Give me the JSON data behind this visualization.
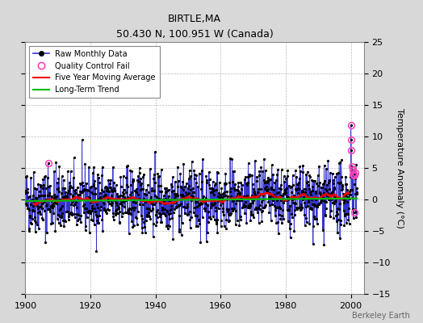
{
  "title": "BIRTLE,MA",
  "subtitle": "50.430 N, 100.951 W (Canada)",
  "ylabel": "Temperature Anomaly (°C)",
  "watermark": "Berkeley Earth",
  "xlim": [
    1900,
    2004
  ],
  "ylim": [
    -15,
    25
  ],
  "yticks": [
    -15,
    -10,
    -5,
    0,
    5,
    10,
    15,
    20,
    25
  ],
  "xticks": [
    1900,
    1920,
    1940,
    1960,
    1980,
    2000
  ],
  "bg_color": "#d8d8d8",
  "plot_bg_color": "#ffffff",
  "raw_line_color": "#3333cc",
  "raw_dot_color": "#000000",
  "moving_avg_color": "#ee0000",
  "trend_color": "#00bb00",
  "qc_fail_color": "#ff44bb",
  "seed": 42,
  "n_months": 1224,
  "start_year": 1900,
  "trend_slope": 0.004,
  "trend_intercept": -0.25
}
